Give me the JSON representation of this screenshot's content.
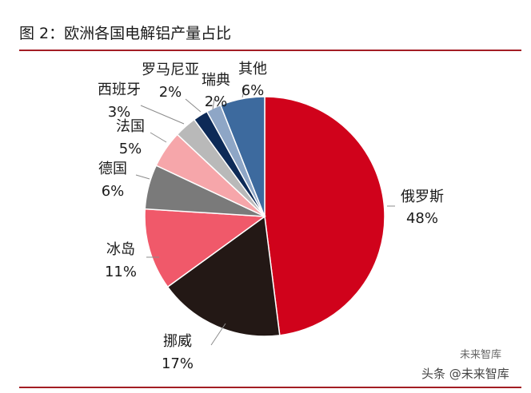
{
  "figure": {
    "title": "图 2：欧洲各国电解铝产量占比",
    "watermark_top": "未来智库",
    "watermark": "头条 @未来智库"
  },
  "chart_data": {
    "type": "pie",
    "title": "欧洲各国电解铝产量占比",
    "unit": "%",
    "slices": [
      {
        "name": "俄罗斯",
        "value": 48,
        "label": "48%",
        "color": "#d0021b"
      },
      {
        "name": "挪威",
        "value": 17,
        "label": "17%",
        "color": "#231815"
      },
      {
        "name": "冰岛",
        "value": 11,
        "label": "11%",
        "color": "#f0596a"
      },
      {
        "name": "德国",
        "value": 6,
        "label": "6%",
        "color": "#7a7a7a"
      },
      {
        "name": "法国",
        "value": 5,
        "label": "5%",
        "color": "#f6a6aa"
      },
      {
        "name": "西班牙",
        "value": 3,
        "label": "3%",
        "color": "#b9b9b9"
      },
      {
        "name": "罗马尼亚",
        "value": 2,
        "label": "2%",
        "color": "#0d2a57"
      },
      {
        "name": "瑞典",
        "value": 2,
        "label": "2%",
        "color": "#8ea6c6"
      },
      {
        "name": "其他",
        "value": 6,
        "label": "6%",
        "color": "#3d6a9e"
      }
    ]
  }
}
